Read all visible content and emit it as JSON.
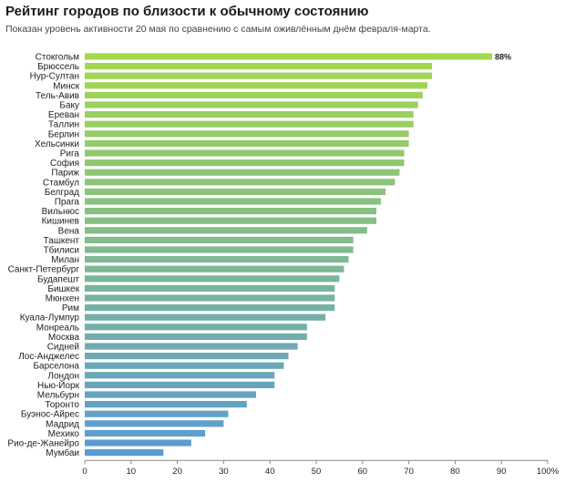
{
  "header": {
    "title": "Рейтинг городов по близости к обычному состоянию",
    "subtitle": "Показан уровень активности 20 мая по сравнению с самым оживлённым днём февраля-марта."
  },
  "colors": {
    "top": "#a4d84e",
    "bottom": "#5b9bd5",
    "axis": "#888888",
    "text": "#222222"
  },
  "chart_data": {
    "type": "bar",
    "orientation": "horizontal",
    "categories": [
      "Стокгольм",
      "Брюссель",
      "Нур-Султан",
      "Минск",
      "Тель-Авив",
      "Баку",
      "Ереван",
      "Таллин",
      "Берлин",
      "Хельсинки",
      "Рига",
      "София",
      "Париж",
      "Стамбул",
      "Белград",
      "Прага",
      "Вильнюс",
      "Кишинев",
      "Вена",
      "Ташкент",
      "Тбилиси",
      "Милан",
      "Санкт-Петербург",
      "Будапешт",
      "Бишкек",
      "Мюнхен",
      "Рим",
      "Куала-Лумпур",
      "Монреаль",
      "Москва",
      "Сидней",
      "Лос-Анджелес",
      "Барселона",
      "Лондон",
      "Нью-Йорк",
      "Мельбурн",
      "Торонто",
      "Буэнос-Айрес",
      "Мадрид",
      "Мехико",
      "Рио-де-Жанейро",
      "Мумбаи"
    ],
    "values": [
      88,
      75,
      75,
      74,
      73,
      72,
      71,
      71,
      70,
      70,
      69,
      69,
      68,
      67,
      65,
      64,
      63,
      63,
      61,
      58,
      58,
      57,
      56,
      55,
      54,
      54,
      54,
      52,
      48,
      48,
      46,
      44,
      43,
      41,
      41,
      37,
      35,
      31,
      30,
      26,
      23,
      17
    ],
    "labeled_value": "88%",
    "xlim": [
      0,
      100
    ],
    "xticks": [
      "0",
      "10",
      "20",
      "30",
      "40",
      "50",
      "60",
      "70",
      "80",
      "90",
      "100%"
    ],
    "grid": false
  }
}
